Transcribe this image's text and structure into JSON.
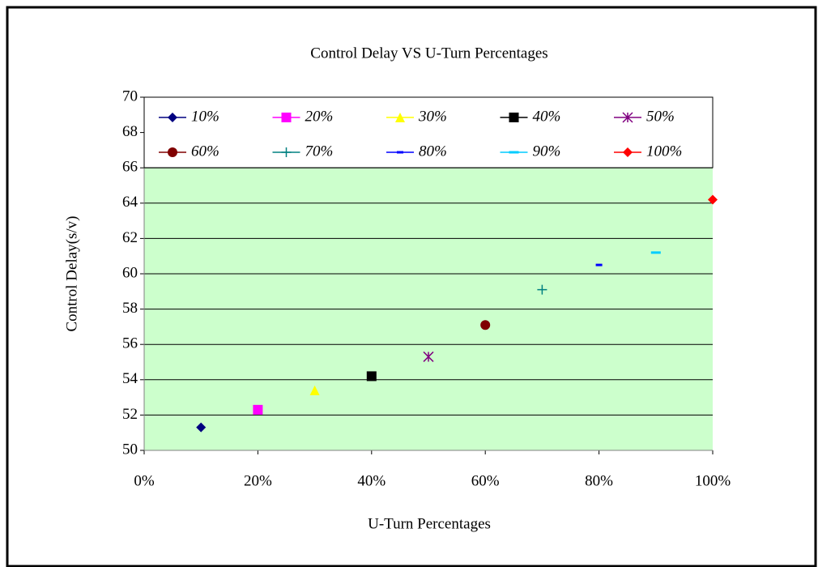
{
  "chart_data": {
    "type": "scatter",
    "title": "Control Delay VS U-Turn Percentages",
    "xlabel": "U-Turn Percentages",
    "ylabel": "Control Delay(s/v)",
    "xlim": [
      0,
      100
    ],
    "xticks": [
      {
        "value": 0,
        "label": "0%"
      },
      {
        "value": 20,
        "label": "20%"
      },
      {
        "value": 40,
        "label": "40%"
      },
      {
        "value": 60,
        "label": "60%"
      },
      {
        "value": 80,
        "label": "80%"
      },
      {
        "value": 100,
        "label": "100%"
      }
    ],
    "ylim": [
      50,
      70
    ],
    "yticks": [
      50,
      52,
      54,
      56,
      58,
      60,
      62,
      64,
      66,
      68,
      70
    ],
    "grid": true,
    "legend": "top",
    "series": [
      {
        "name": "10%",
        "color": "#000080",
        "marker": "diamond",
        "x": [
          10
        ],
        "values": [
          51.3
        ]
      },
      {
        "name": "20%",
        "color": "#ff00ff",
        "marker": "square",
        "x": [
          20
        ],
        "values": [
          52.3
        ]
      },
      {
        "name": "30%",
        "color": "#ffff00",
        "marker": "triangle",
        "x": [
          30
        ],
        "values": [
          53.4
        ]
      },
      {
        "name": "40%",
        "color": "#000000",
        "marker": "square",
        "x": [
          40
        ],
        "values": [
          54.2
        ]
      },
      {
        "name": "50%",
        "color": "#800080",
        "marker": "star",
        "x": [
          50
        ],
        "values": [
          55.3
        ]
      },
      {
        "name": "60%",
        "color": "#800000",
        "marker": "circle",
        "x": [
          60
        ],
        "values": [
          57.1
        ]
      },
      {
        "name": "70%",
        "color": "#008080",
        "marker": "plus",
        "x": [
          70
        ],
        "values": [
          59.1
        ]
      },
      {
        "name": "80%",
        "color": "#0000ff",
        "marker": "dash",
        "x": [
          80
        ],
        "values": [
          60.5
        ]
      },
      {
        "name": "90%",
        "color": "#00ccff",
        "marker": "longdash",
        "x": [
          90
        ],
        "values": [
          61.2
        ]
      },
      {
        "name": "100%",
        "color": "#ff0000",
        "marker": "diamond",
        "x": [
          100
        ],
        "values": [
          64.2
        ]
      }
    ]
  }
}
